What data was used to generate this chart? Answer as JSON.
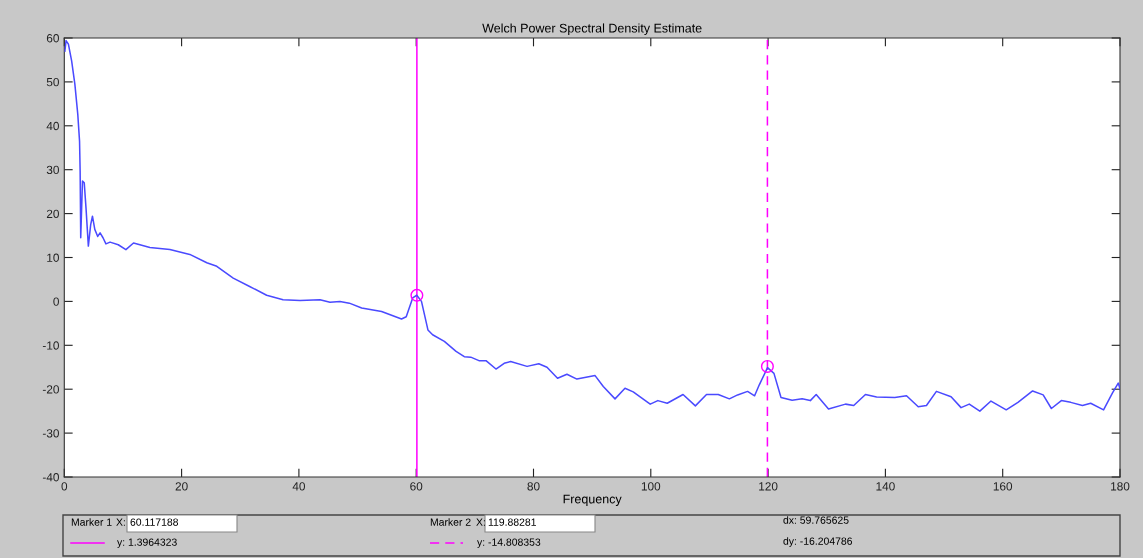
{
  "chart_data": {
    "type": "line",
    "title": "Welch Power Spectral Density Estimate",
    "xlabel": "Frequency",
    "xlim": [
      0,
      180
    ],
    "ylim": [
      -40,
      60
    ],
    "xticks": [
      0,
      20,
      40,
      60,
      80,
      100,
      120,
      140,
      160,
      180
    ],
    "yticks": [
      -40,
      -30,
      -20,
      -10,
      0,
      10,
      20,
      30,
      40,
      50,
      60
    ],
    "grid": false,
    "series": [
      {
        "color": "#4a4aff",
        "marker": "none",
        "x": [
          0.1,
          0.3,
          0.7,
          1.25,
          1.8,
          2.3,
          2.6,
          2.7,
          2.8,
          3.1,
          3.4,
          3.7,
          4.1,
          4.5,
          4.8,
          5.2,
          5.7,
          6.1,
          6.6,
          7.1,
          7.8,
          9.2,
          10.5,
          11.8,
          14.6,
          18,
          21.4,
          24.3,
          26,
          28.8,
          31.6,
          34.5,
          37.3,
          40.2,
          43.6,
          45.3,
          47,
          48.6,
          50.7,
          54.1,
          57.5,
          58.3,
          59.4,
          60.1,
          60.9,
          62,
          62.8,
          64.8,
          66.8,
          68.2,
          69.3,
          70.7,
          71.9,
          73.6,
          75,
          76.1,
          78.9,
          80.9,
          82.3,
          84.1,
          85.7,
          87.4,
          90.5,
          91.9,
          93.9,
          95.6,
          97,
          99.9,
          101.2,
          102.8,
          105.5,
          107.6,
          109.5,
          111.5,
          113.4,
          114.8,
          116.5,
          117.7,
          118.5,
          119.9,
          121,
          122.2,
          124.1,
          125.8,
          127.2,
          128.2,
          130.3,
          133.2,
          134.6,
          136.6,
          138.5,
          141.6,
          143.6,
          145.6,
          147,
          148.7,
          151.2,
          152.9,
          154.3,
          156.1,
          158,
          160.6,
          162.6,
          165.1,
          166.9,
          168.3,
          170,
          171.6,
          173.6,
          175,
          177.2,
          178.7,
          179.7,
          180
        ],
        "values": [
          57,
          59.4,
          58.6,
          54.8,
          49.5,
          42.6,
          36.5,
          29.7,
          14.5,
          27.4,
          27,
          21.3,
          12.6,
          17.5,
          19.4,
          16.4,
          14.8,
          15.6,
          14.5,
          13.1,
          13.5,
          12.9,
          11.8,
          13.3,
          12.3,
          11.8,
          10.7,
          8.8,
          8,
          5.3,
          3.4,
          1.4,
          0.4,
          0.2,
          0.4,
          -0.2,
          0,
          -0.4,
          -1.5,
          -2.3,
          -4,
          -3.5,
          0.8,
          1.4,
          0,
          -6.5,
          -7.6,
          -9.1,
          -11.4,
          -12.6,
          -12.7,
          -13.5,
          -13.5,
          -15.4,
          -14.1,
          -13.7,
          -14.8,
          -14.2,
          -15,
          -17.5,
          -16.6,
          -17.7,
          -16.9,
          -19.4,
          -22.2,
          -19.8,
          -20.6,
          -23.4,
          -22.6,
          -23.2,
          -21.2,
          -23.8,
          -21.2,
          -21.2,
          -22.2,
          -21.3,
          -20.5,
          -21.5,
          -19,
          -15.1,
          -16.4,
          -21.9,
          -22.5,
          -22.2,
          -22.6,
          -21.2,
          -24.5,
          -23.4,
          -23.7,
          -21.2,
          -21.8,
          -21.9,
          -21.5,
          -24,
          -23.7,
          -20.5,
          -21.7,
          -24.2,
          -23.4,
          -25,
          -22.7,
          -24.7,
          -23,
          -20.4,
          -21.3,
          -24.4,
          -22.6,
          -23,
          -23.7,
          -23.2,
          -24.7,
          -20.9,
          -18.6,
          -19.9
        ]
      },
      {
        "type": "scatter",
        "color": "#ff00ff",
        "marker": "circle",
        "x": [
          60.117188,
          119.88281
        ],
        "values": [
          1.3964323,
          -14.808353
        ]
      }
    ],
    "ref_lines": [
      {
        "axis": "x",
        "value": 60.117188,
        "color": "#ff00ff",
        "line_style": "solid"
      },
      {
        "axis": "x",
        "value": 119.88281,
        "color": "#ff00ff",
        "line_style": "dashed"
      }
    ],
    "annotations": [
      "Marker 1",
      "X:",
      "60.117188",
      "y: 1.3964323",
      "Marker 2",
      "X:",
      "119.88281",
      "y: -14.808353",
      "dx: 59.765625",
      "dy: -16.204786"
    ]
  }
}
